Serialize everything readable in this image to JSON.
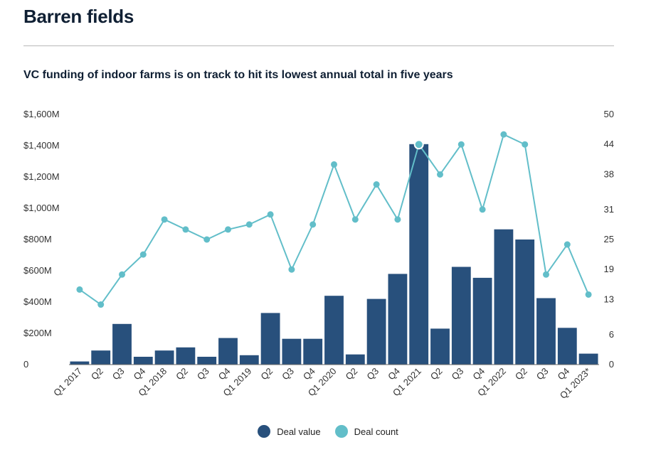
{
  "header": {
    "title": "Barren fields",
    "subtitle": "VC funding of indoor farms is on track to hit its lowest  annual total in five years"
  },
  "colors": {
    "deal_value": "#28507c",
    "deal_count": "#62bec9"
  },
  "legend": {
    "deal_value_label": "Deal value",
    "deal_count_label": "Deal count"
  },
  "chart_data": {
    "type": "bar",
    "title": "VC funding of indoor farms is on track to hit its lowest  annual total in five years",
    "categories": [
      "Q1 2017",
      "Q2",
      "Q3",
      "Q4",
      "Q1 2018",
      "Q2",
      "Q3",
      "Q4",
      "Q1 2019",
      "Q2",
      "Q3",
      "Q4",
      "Q1 2020",
      "Q2",
      "Q3",
      "Q4",
      "Q1 2021",
      "Q2",
      "Q3",
      "Q4",
      "Q1 2022",
      "Q2",
      "Q3",
      "Q4",
      "Q1 2023*"
    ],
    "y_left": {
      "ylim": [
        0,
        1600
      ],
      "ticks": [
        0,
        200,
        400,
        600,
        800,
        1000,
        1200,
        1400,
        1600
      ],
      "tick_labels": [
        "0",
        "$200M",
        "$400M",
        "$600M",
        "$800M",
        "$1,000M",
        "$1,200M",
        "$1,400M",
        "$1,600M"
      ]
    },
    "y_right": {
      "ylim": [
        0,
        50
      ],
      "ticks": [
        0,
        6,
        13,
        19,
        25,
        31,
        38,
        44,
        50
      ],
      "tick_labels": [
        "0",
        "6",
        "13",
        "19",
        "25",
        "31",
        "38",
        "44",
        "50"
      ]
    },
    "series": [
      {
        "name": "Deal value",
        "type": "bar",
        "axis": "left",
        "values": [
          20,
          90,
          260,
          50,
          90,
          110,
          50,
          170,
          60,
          330,
          165,
          165,
          440,
          65,
          420,
          580,
          1410,
          230,
          625,
          555,
          865,
          800,
          425,
          235,
          70
        ]
      },
      {
        "name": "Deal count",
        "type": "line",
        "axis": "right",
        "values": [
          15,
          12,
          18,
          22,
          29,
          27,
          25,
          27,
          28,
          30,
          19,
          28,
          40,
          29,
          36,
          29,
          44,
          38,
          44,
          31,
          46,
          44,
          18,
          24,
          14
        ]
      }
    ],
    "highlighted_point": {
      "series": "Deal count",
      "category_index": 16
    }
  }
}
